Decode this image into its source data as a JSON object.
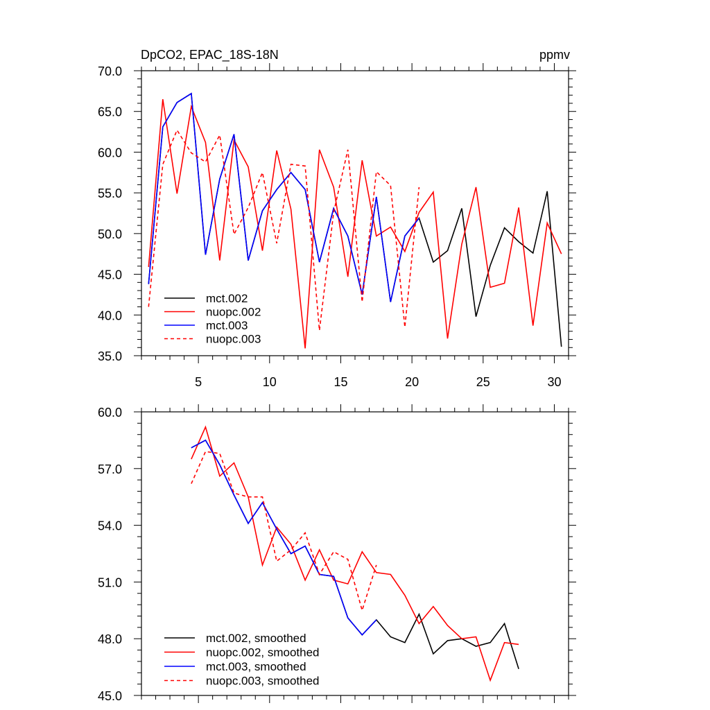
{
  "chart_data": [
    {
      "type": "line",
      "title": "DpCO2, EPAC_18S-18N",
      "units": "ppmv",
      "xlabel": "",
      "ylabel": "",
      "xlim": [
        1,
        31
      ],
      "ylim": [
        35,
        70
      ],
      "xticks": [
        5,
        10,
        15,
        20,
        25,
        30
      ],
      "xtick_labels": [
        "5",
        "10",
        "15",
        "20",
        "25",
        "30"
      ],
      "yticks": [
        35,
        40,
        45,
        50,
        55,
        60,
        65,
        70
      ],
      "ytick_labels": [
        "35.0",
        "40.0",
        "45.0",
        "50.0",
        "55.0",
        "60.0",
        "65.0",
        "70.0"
      ],
      "legend_position": "bottom-left",
      "series": [
        {
          "name": "mct.002",
          "color": "#000000",
          "dash": "solid",
          "x": [
            1.5,
            2.5,
            3.5,
            4.5,
            5.5,
            6.5,
            7.5,
            8.5,
            9.5,
            10.5,
            11.5,
            12.5,
            13.5,
            14.5,
            15.5,
            16.5,
            17.5,
            18.5,
            19.5,
            20.5,
            21.5,
            22.5,
            23.5,
            24.5,
            25.5,
            26.5,
            27.5,
            28.5,
            29.5,
            30.5
          ],
          "values": [
            43.8,
            63.1,
            66.1,
            67.2,
            47.4,
            56.7,
            62.2,
            46.7,
            52.8,
            55.4,
            57.5,
            55.4,
            46.5,
            53.1,
            49.7,
            42.5,
            54.5,
            41.6,
            49.7,
            51.9,
            46.5,
            47.9,
            53.1,
            39.8,
            46.1,
            50.7,
            49.0,
            47.6,
            55.2,
            36.1
          ]
        },
        {
          "name": "nuopc.002",
          "color": "#ff0000",
          "dash": "solid",
          "x": [
            1.5,
            2.5,
            3.5,
            4.5,
            5.5,
            6.5,
            7.5,
            8.5,
            9.5,
            10.5,
            11.5,
            12.5,
            13.5,
            14.5,
            15.5,
            16.5,
            17.5,
            18.5,
            19.5,
            20.5,
            21.5,
            22.5,
            23.5,
            24.5,
            25.5,
            26.5,
            27.5,
            28.5,
            29.5,
            30.5
          ],
          "values": [
            45.9,
            66.5,
            54.9,
            65.6,
            61.2,
            46.7,
            61.5,
            58.2,
            47.9,
            60.2,
            53.0,
            35.9,
            60.3,
            55.7,
            44.7,
            59.0,
            49.7,
            50.8,
            47.8,
            52.6,
            55.1,
            37.1,
            48.7,
            55.7,
            43.4,
            43.9,
            53.2,
            38.7,
            51.3,
            47.5
          ]
        },
        {
          "name": "mct.003",
          "color": "#0000ff",
          "dash": "solid",
          "x": [
            1.5,
            2.5,
            3.5,
            4.5,
            5.5,
            6.5,
            7.5,
            8.5,
            9.5,
            10.5,
            11.5,
            12.5,
            13.5,
            14.5,
            15.5,
            16.5,
            17.5,
            18.5,
            19.5,
            20.5
          ],
          "values": [
            43.8,
            63.1,
            66.1,
            67.2,
            47.4,
            56.7,
            62.2,
            46.7,
            52.8,
            55.4,
            57.5,
            55.4,
            46.5,
            53.1,
            49.7,
            42.5,
            54.5,
            41.6,
            49.7,
            51.9
          ]
        },
        {
          "name": "nuopc.003",
          "color": "#ff0000",
          "dash": "dashed",
          "x": [
            1.5,
            2.5,
            3.5,
            4.5,
            5.5,
            6.5,
            7.5,
            8.5,
            9.5,
            10.5,
            11.5,
            12.5,
            13.5,
            14.5,
            15.5,
            16.5,
            17.5,
            18.5,
            19.5,
            20.5
          ],
          "values": [
            41.0,
            58.5,
            62.7,
            59.9,
            58.8,
            62.1,
            49.9,
            53.2,
            57.5,
            48.8,
            58.5,
            58.3,
            38.1,
            52.6,
            60.3,
            41.6,
            57.6,
            55.9,
            38.5,
            55.7
          ]
        }
      ]
    },
    {
      "type": "line",
      "title": "",
      "xlabel": "",
      "ylabel": "",
      "xlim": [
        1,
        31
      ],
      "ylim": [
        45,
        60
      ],
      "xticks": [
        5,
        10,
        15,
        20,
        25,
        30
      ],
      "xtick_labels": [],
      "yticks": [
        45,
        48,
        51,
        54,
        57,
        60
      ],
      "ytick_labels": [
        "45.0",
        "48.0",
        "51.0",
        "54.0",
        "57.0",
        "60.0"
      ],
      "legend_position": "bottom-left",
      "series": [
        {
          "name": "mct.002, smoothed",
          "color": "#000000",
          "dash": "solid",
          "x": [
            4.5,
            5.5,
            6.5,
            7.5,
            8.5,
            9.5,
            10.5,
            11.5,
            12.5,
            13.5,
            14.5,
            15.5,
            16.5,
            17.5,
            18.5,
            19.5,
            20.5,
            21.5,
            22.5,
            23.5,
            24.5,
            25.5,
            26.5,
            27.5
          ],
          "values": [
            58.1,
            58.5,
            57.2,
            55.6,
            54.1,
            55.2,
            53.8,
            52.5,
            52.9,
            51.4,
            51.3,
            49.1,
            48.2,
            49.0,
            48.1,
            47.8,
            49.3,
            47.2,
            47.9,
            48.0,
            47.6,
            47.8,
            48.8,
            46.4
          ]
        },
        {
          "name": "nuopc.002, smoothed",
          "color": "#ff0000",
          "dash": "solid",
          "x": [
            4.5,
            5.5,
            6.5,
            7.5,
            8.5,
            9.5,
            10.5,
            11.5,
            12.5,
            13.5,
            14.5,
            15.5,
            16.5,
            17.5,
            18.5,
            19.5,
            20.5,
            21.5,
            22.5,
            23.5,
            24.5,
            25.5,
            26.5,
            27.5
          ],
          "values": [
            57.5,
            59.2,
            56.6,
            57.3,
            55.5,
            51.9,
            53.9,
            53.0,
            51.1,
            52.7,
            51.1,
            50.9,
            52.6,
            51.5,
            51.4,
            50.3,
            48.8,
            49.7,
            48.7,
            48.0,
            48.1,
            45.8,
            47.8,
            47.7
          ]
        },
        {
          "name": "mct.003, smoothed",
          "color": "#0000ff",
          "dash": "solid",
          "x": [
            4.5,
            5.5,
            6.5,
            7.5,
            8.5,
            9.5,
            10.5,
            11.5,
            12.5,
            13.5,
            14.5,
            15.5,
            16.5,
            17.5
          ],
          "values": [
            58.1,
            58.5,
            57.2,
            55.6,
            54.1,
            55.2,
            53.8,
            52.5,
            52.9,
            51.4,
            51.3,
            49.1,
            48.2,
            49.0
          ]
        },
        {
          "name": "nuopc.003, smoothed",
          "color": "#ff0000",
          "dash": "dashed",
          "x": [
            4.5,
            5.5,
            6.5,
            7.5,
            8.5,
            9.5,
            10.5,
            11.5,
            12.5,
            13.5,
            14.5,
            15.5,
            16.5,
            17.5
          ],
          "values": [
            56.2,
            57.9,
            57.8,
            55.7,
            55.5,
            55.5,
            52.1,
            52.7,
            53.6,
            51.4,
            52.6,
            52.2,
            49.5,
            51.9
          ]
        }
      ]
    }
  ]
}
